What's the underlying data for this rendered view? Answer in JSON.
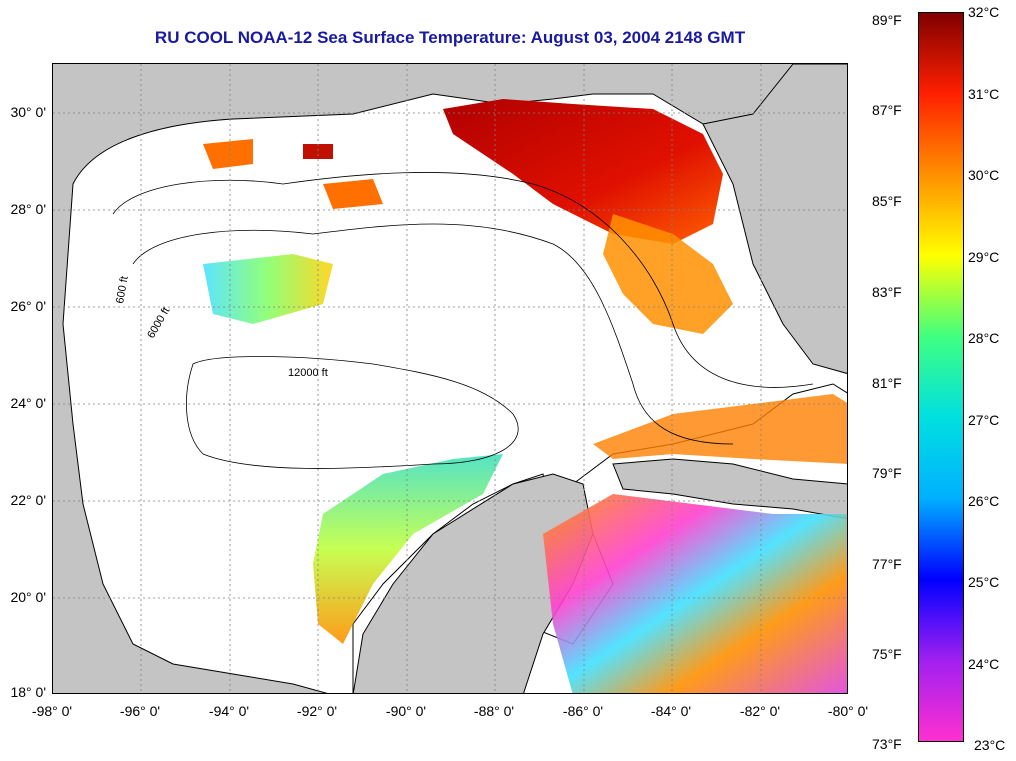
{
  "title": "RU COOL  NOAA-12  Sea Surface Temperature:  August 03, 2004 2148 GMT",
  "map": {
    "lon_range": [
      -98,
      -80
    ],
    "lat_range": [
      18,
      31
    ],
    "lat_ticks": [
      "30° 0'",
      "28° 0'",
      "26° 0'",
      "24° 0'",
      "22° 0'",
      "20° 0'",
      "18° 0'"
    ],
    "lon_ticks": [
      "-98° 0'",
      "-96° 0'",
      "-94° 0'",
      "-92° 0'",
      "-90° 0'",
      "-88° 0'",
      "-86° 0'",
      "-84° 0'",
      "-82° 0'",
      "-80° 0'"
    ],
    "land_color": "#c4c4c4",
    "water_color": "#ffffff",
    "contour_labels": [
      "600 ft",
      "6000 ft",
      "12000 ft"
    ],
    "grid": "dotted"
  },
  "colorbar": {
    "fahrenheit_labels": [
      "89°F",
      "87°F",
      "85°F",
      "83°F",
      "81°F",
      "79°F",
      "77°F",
      "75°F",
      "73°F"
    ],
    "celsius_labels": [
      "32°C",
      "31°C",
      "30°C",
      "29°C",
      "28°C",
      "27°C",
      "26°C",
      "25°C",
      "24°C",
      "23°C"
    ],
    "colors": [
      "#ff30d0",
      "#a020f0",
      "#0000ff",
      "#00b0ff",
      "#00e0e0",
      "#40ff80",
      "#ffff00",
      "#ff9000",
      "#ff2000",
      "#800000"
    ]
  }
}
